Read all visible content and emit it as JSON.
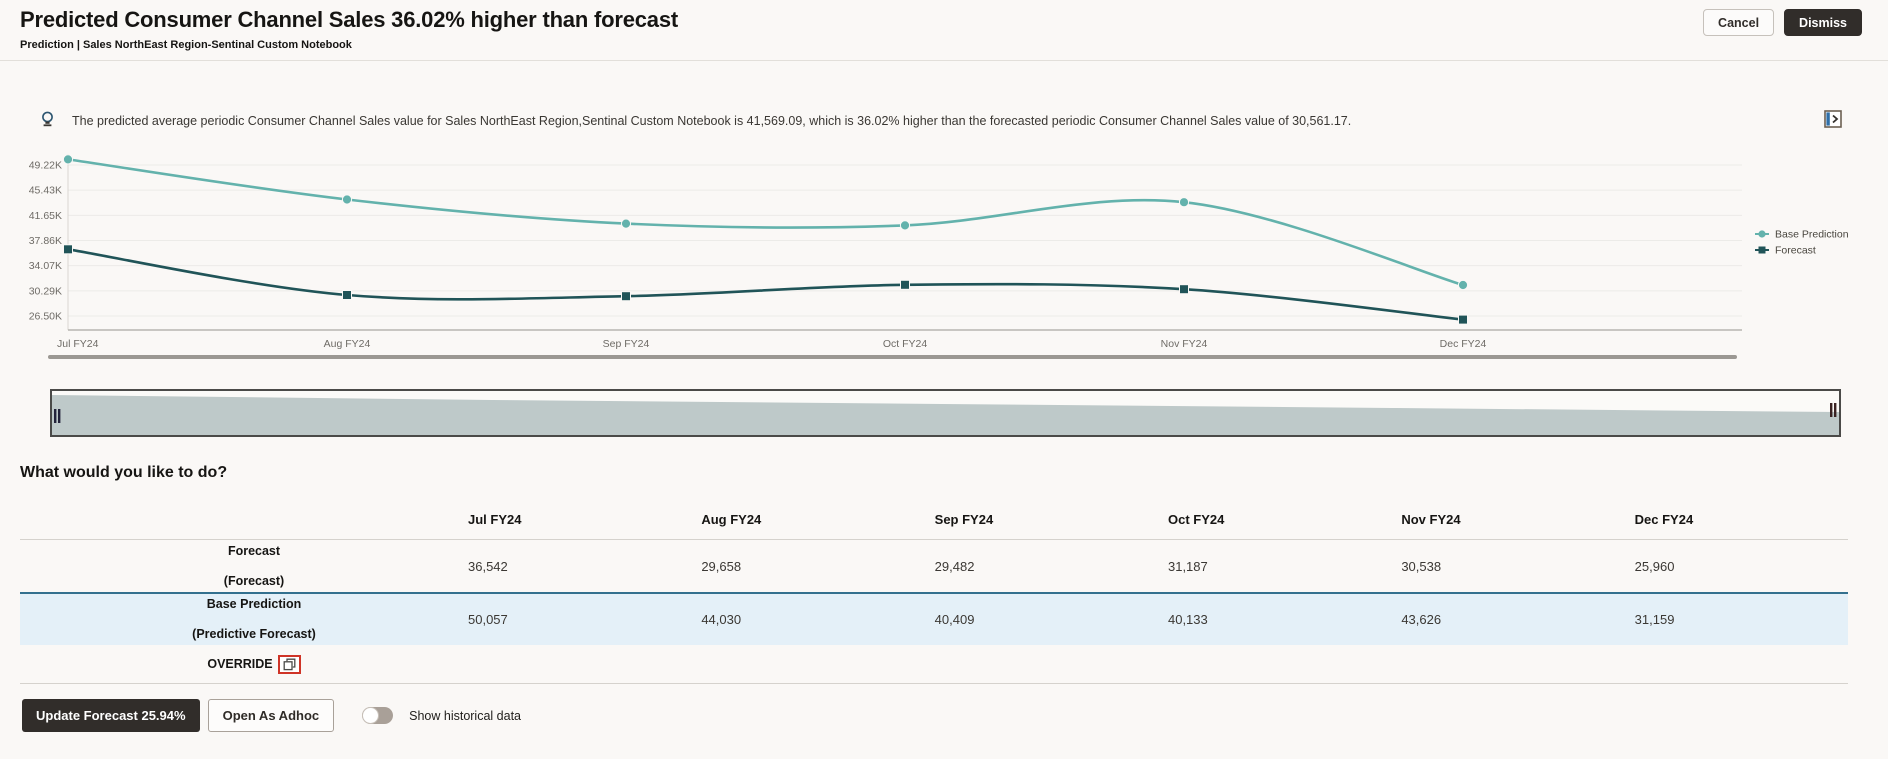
{
  "header": {
    "title": "Predicted Consumer Channel Sales 36.02% higher than forecast",
    "breadcrumb": "Prediction | Sales NorthEast Region-Sentinal Custom Notebook",
    "cancel_label": "Cancel",
    "dismiss_label": "Dismiss"
  },
  "insight": {
    "message": "The predicted average periodic Consumer Channel Sales value for Sales NorthEast Region,Sentinal Custom Notebook is 41,569.09, which is 36.02% higher than the forecasted periodic Consumer Channel Sales value of 30,561.17.",
    "left_icon": "insight-lightbulb-icon",
    "right_icon": "expand-panel-icon"
  },
  "chart_data": {
    "type": "line",
    "title": "",
    "xlabel": "",
    "ylabel": "",
    "categories": [
      "Jul FY24",
      "Aug FY24",
      "Sep FY24",
      "Oct FY24",
      "Nov FY24",
      "Dec FY24"
    ],
    "series": [
      {
        "name": "Forecast",
        "color": "#205458",
        "marker": "square",
        "values": [
          36542,
          29658,
          29482,
          31187,
          30538,
          25960
        ]
      },
      {
        "name": "Base Prediction",
        "color": "#63b2ac",
        "marker": "circle",
        "values": [
          50057,
          44030,
          40409,
          40133,
          43626,
          31159
        ]
      }
    ],
    "y_ticks": [
      "49.22K",
      "45.43K",
      "41.65K",
      "37.86K",
      "34.07K",
      "30.29K",
      "26.50K"
    ],
    "ylim": [
      26500,
      49220
    ],
    "grid": true,
    "legend_position": "right"
  },
  "section": {
    "heading": "What would you like to do?"
  },
  "table": {
    "columns": [
      "Jul FY24",
      "Aug FY24",
      "Sep FY24",
      "Oct FY24",
      "Nov FY24",
      "Dec FY24"
    ],
    "rows": [
      {
        "label": "Forecast",
        "sublabel": "(Forecast)",
        "values": [
          "36,542",
          "29,658",
          "29,482",
          "31,187",
          "30,538",
          "25,960"
        ],
        "highlight": false,
        "override": false
      },
      {
        "label": "Base Prediction",
        "sublabel": "(Predictive Forecast)",
        "values": [
          "50,057",
          "44,030",
          "40,409",
          "40,133",
          "43,626",
          "31,159"
        ],
        "highlight": true,
        "override": false
      },
      {
        "label": "OVERRIDE",
        "sublabel": "",
        "values": [
          "",
          "",
          "",
          "",
          "",
          ""
        ],
        "highlight": false,
        "override": true
      }
    ]
  },
  "footer": {
    "update_button": "Update Forecast 25.94%",
    "adhoc_button": "Open As Adhoc",
    "toggle_label": "Show historical data",
    "toggle_state": "off"
  },
  "colors": {
    "accent_dark": "#312d2a",
    "forecast_line": "#205458",
    "base_prediction_line": "#63b2ac",
    "highlight_row_bg": "#e4f0f8",
    "highlight_row_border": "#33708e",
    "annotation_red": "#cf3427",
    "page_bg": "#faf8f6"
  }
}
